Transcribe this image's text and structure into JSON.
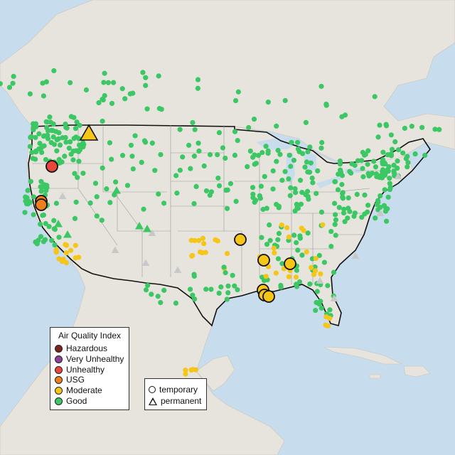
{
  "legend": {
    "title": "Air Quality Index",
    "categories": [
      {
        "label": "Hazardous",
        "color": "#7e2318"
      },
      {
        "label": "Very Unhealthy",
        "color": "#8f3f97"
      },
      {
        "label": "Unhealthy",
        "color": "#e8463a"
      },
      {
        "label": "USG",
        "color": "#f07e1a"
      },
      {
        "label": "Moderate",
        "color": "#f5c518"
      },
      {
        "label": "Good",
        "color": "#3cc765"
      }
    ]
  },
  "monitor_types": {
    "temporary": "temporary",
    "permanent": "permanent"
  },
  "colors": {
    "ocean": "#c7dced",
    "land": "#e7e4dd",
    "no_data": "#c8c8c8"
  }
}
